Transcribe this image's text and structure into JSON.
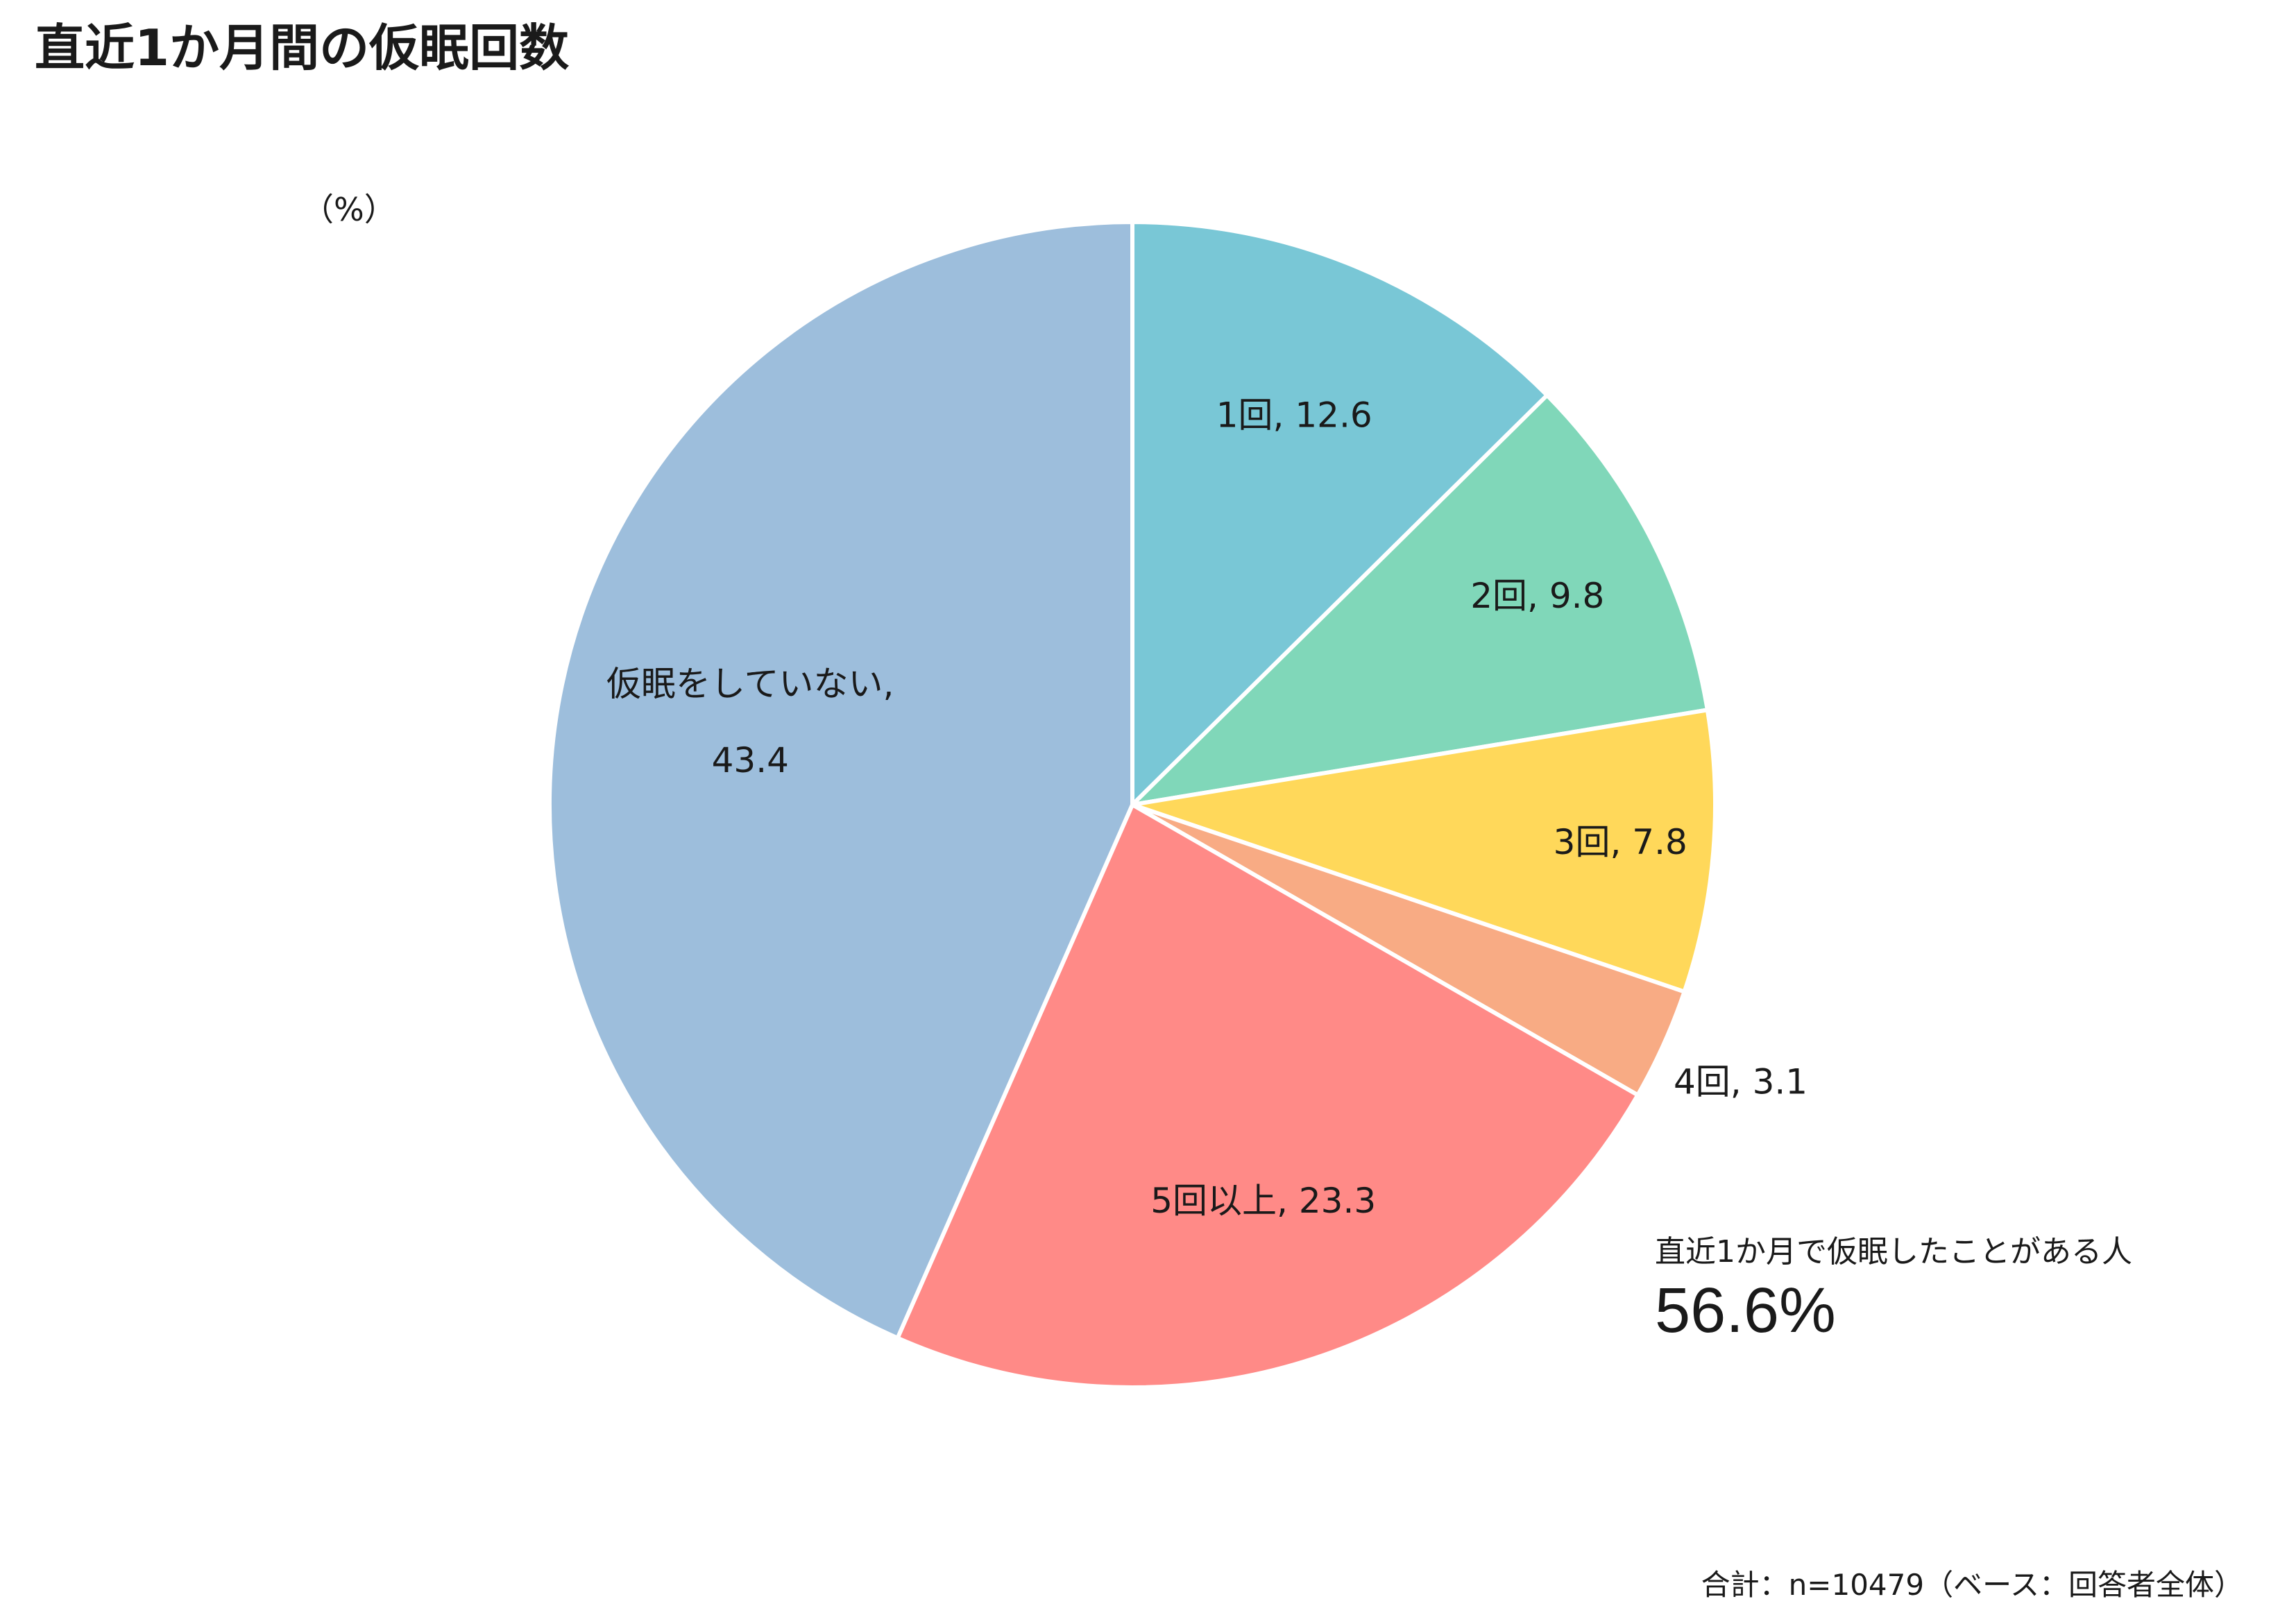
{
  "chart_data": {
    "type": "pie",
    "title": "直近1か月間の仮眠回数",
    "unit_label": "（%）",
    "start_angle_deg": 0,
    "direction": "clockwise",
    "slices": [
      {
        "label": "1回",
        "value": 12.6,
        "color": "#79c7d6",
        "text": "1回, 12.6"
      },
      {
        "label": "2回",
        "value": 9.8,
        "color": "#80d7b9",
        "text": "2回, 9.8"
      },
      {
        "label": "3回",
        "value": 7.8,
        "color": "#ffd85a",
        "text": "3回, 7.8"
      },
      {
        "label": "4回",
        "value": 3.1,
        "color": "#f8ab84",
        "text": "4回, 3.1"
      },
      {
        "label": "5回以上",
        "value": 23.3,
        "color": "#ff8a87",
        "text": "5回以上, 23.3"
      },
      {
        "label": "仮眠をしていない",
        "value": 43.4,
        "color": "#9dbedc",
        "text": "仮眠をしていない,",
        "text2": "43.4"
      }
    ],
    "callout": {
      "label": "直近1か月で仮眠したことがある人",
      "value": "56.6%"
    },
    "footnote": "合計：n=10479（ベース：回答者全体）"
  }
}
